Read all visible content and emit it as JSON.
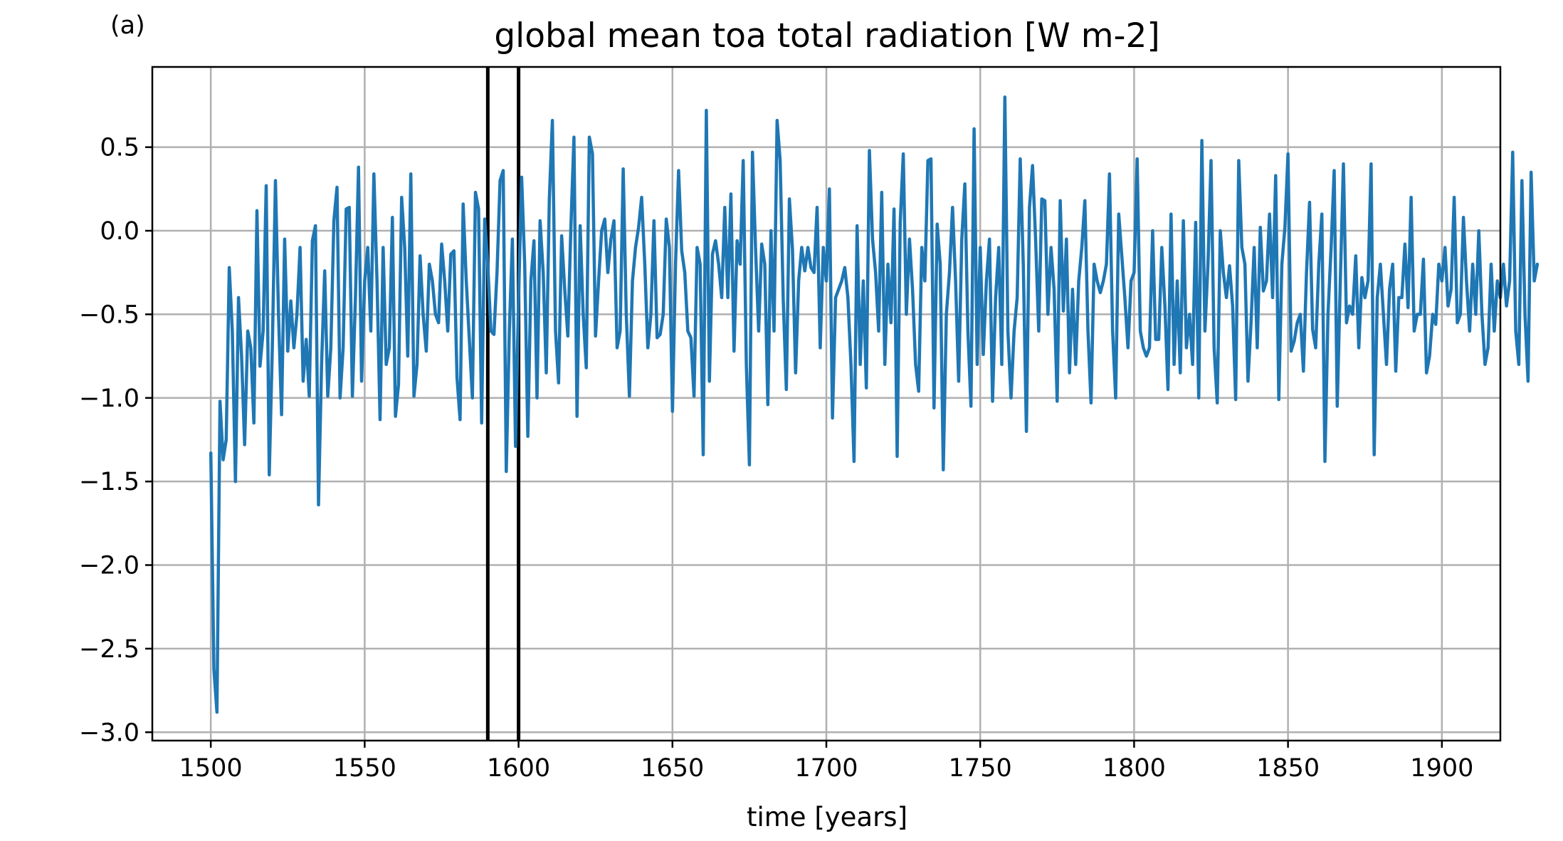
{
  "panel_label": "(a)",
  "chart_data": {
    "type": "line",
    "title": "global mean toa total radiation [W m-2]",
    "xlabel": "time [years]",
    "ylabel": "",
    "xlim": [
      1481,
      1919
    ],
    "ylim": [
      -3.05,
      0.98
    ],
    "grid": true,
    "x_ticks": [
      1500,
      1550,
      1600,
      1650,
      1700,
      1750,
      1800,
      1850,
      1900
    ],
    "x_tick_labels": [
      "1500",
      "1550",
      "1600",
      "1650",
      "1700",
      "1750",
      "1800",
      "1850",
      "1900"
    ],
    "y_ticks": [
      0.5,
      0.0,
      -0.5,
      -1.0,
      -1.5,
      -2.0,
      -2.5,
      -3.0
    ],
    "y_tick_labels": [
      "0.5",
      "0.0",
      "−0.5",
      "−1.0",
      "−1.5",
      "−2.0",
      "−2.5",
      "−3.0"
    ],
    "vertical_lines": [
      1590,
      1600
    ],
    "series": [
      {
        "color": "#1f77b4",
        "x_start": 1500,
        "x_step": 1,
        "values": [
          -1.33,
          -2.62,
          -2.88,
          -1.02,
          -1.37,
          -1.25,
          -0.22,
          -0.6,
          -1.5,
          -0.4,
          -0.75,
          -1.28,
          -0.6,
          -0.7,
          -1.15,
          0.12,
          -0.81,
          -0.6,
          0.27,
          -1.46,
          -0.7,
          0.3,
          -0.5,
          -1.1,
          -0.05,
          -0.72,
          -0.42,
          -0.7,
          -0.5,
          -0.1,
          -0.9,
          -0.65,
          -0.99,
          -0.06,
          0.03,
          -1.64,
          -0.8,
          -0.24,
          -0.99,
          -0.7,
          0.06,
          0.26,
          -1.0,
          -0.7,
          0.13,
          0.14,
          -0.99,
          -0.4,
          0.38,
          -0.9,
          -0.3,
          -0.1,
          -0.6,
          0.34,
          -0.3,
          -1.13,
          -0.1,
          -0.8,
          -0.7,
          0.08,
          -1.11,
          -0.92,
          0.2,
          -0.1,
          -0.75,
          0.34,
          -0.99,
          -0.8,
          -0.15,
          -0.5,
          -0.72,
          -0.2,
          -0.3,
          -0.5,
          -0.55,
          -0.08,
          -0.3,
          -0.6,
          -0.14,
          -0.12,
          -0.88,
          -1.13,
          0.16,
          -0.3,
          -0.65,
          -1.0,
          0.23,
          0.13,
          -1.15,
          0.07,
          -0.2,
          -0.6,
          -0.62,
          -0.25,
          0.3,
          0.36,
          -1.44,
          -0.6,
          -0.05,
          -1.29,
          -0.4,
          0.32,
          -0.2,
          -1.23,
          -0.3,
          -0.06,
          -1.0,
          0.06,
          -0.25,
          -0.85,
          0.19,
          0.66,
          -0.6,
          -0.91,
          -0.03,
          -0.35,
          -0.63,
          0.02,
          0.56,
          -1.11,
          0.03,
          -0.5,
          -0.82,
          0.56,
          0.46,
          -0.63,
          -0.3,
          0.0,
          0.07,
          -0.25,
          -0.05,
          0.06,
          -0.7,
          -0.6,
          0.37,
          -0.5,
          -0.99,
          -0.3,
          -0.1,
          0.02,
          0.2,
          -0.2,
          -0.7,
          -0.5,
          0.06,
          -0.64,
          -0.62,
          -0.5,
          0.07,
          -0.1,
          -1.08,
          -0.2,
          0.36,
          -0.12,
          -0.25,
          -0.6,
          -0.64,
          -0.99,
          -0.1,
          -0.2,
          -1.34,
          0.72,
          -0.9,
          -0.14,
          -0.06,
          -0.2,
          -0.4,
          0.14,
          -0.4,
          0.22,
          -0.72,
          -0.06,
          -0.2,
          0.42,
          -0.8,
          -1.4,
          0.47,
          -0.1,
          -0.6,
          -0.08,
          -0.2,
          -1.04,
          0.0,
          -0.6,
          0.66,
          0.42,
          -0.42,
          -0.95,
          0.19,
          -0.11,
          -0.85,
          -0.3,
          -0.1,
          -0.24,
          -0.1,
          -0.22,
          -0.25,
          0.14,
          -0.7,
          -0.1,
          -0.3,
          0.25,
          -1.12,
          -0.4,
          -0.35,
          -0.3,
          -0.22,
          -0.4,
          -0.8,
          -1.38,
          0.03,
          -0.8,
          -0.3,
          -0.94,
          0.48,
          -0.05,
          -0.25,
          -0.6,
          0.23,
          -0.8,
          -0.2,
          -0.55,
          0.13,
          -1.35,
          0.05,
          0.46,
          -0.5,
          -0.05,
          -0.35,
          -0.8,
          -0.96,
          -0.1,
          -0.3,
          0.42,
          0.43,
          -1.06,
          0.04,
          -0.2,
          -1.43,
          -0.5,
          -0.25,
          0.14,
          -0.3,
          -0.9,
          -0.05,
          0.28,
          -0.6,
          -1.05,
          0.61,
          -0.8,
          -0.1,
          -0.74,
          -0.3,
          -0.05,
          -1.02,
          -0.4,
          -0.1,
          -0.8,
          0.8,
          -0.6,
          -1.0,
          -0.6,
          -0.4,
          0.43,
          -0.2,
          -1.2,
          0.14,
          0.39,
          -0.05,
          -0.6,
          0.19,
          0.18,
          -0.5,
          -0.1,
          -0.35,
          -1.02,
          0.18,
          -0.48,
          -0.05,
          -0.85,
          -0.35,
          -0.8,
          -0.3,
          -0.1,
          0.18,
          -0.6,
          -1.03,
          -0.2,
          -0.3,
          -0.37,
          -0.3,
          -0.2,
          0.34,
          -0.6,
          -1.0,
          0.1,
          -0.15,
          -0.4,
          -0.7,
          -0.3,
          -0.25,
          0.43,
          -0.6,
          -0.7,
          -0.75,
          -0.7,
          0.0,
          -0.65,
          -0.65,
          -0.1,
          -0.45,
          -0.95,
          0.1,
          -0.8,
          -0.3,
          -0.85,
          0.06,
          -0.7,
          -0.5,
          -0.8,
          0.05,
          -1.0,
          0.54,
          -0.6,
          -0.2,
          0.42,
          -0.7,
          -1.03,
          0.0,
          -0.25,
          -0.4,
          -0.21,
          -0.45,
          -1.01,
          0.42,
          -0.1,
          -0.2,
          -0.9,
          -0.55,
          -0.1,
          -0.7,
          0.02,
          -0.36,
          -0.3,
          0.1,
          -0.4,
          0.33,
          -1.01,
          -0.2,
          0.02,
          0.46,
          -0.72,
          -0.66,
          -0.55,
          -0.5,
          -0.84,
          -0.25,
          0.17,
          -0.59,
          -0.7,
          -0.2,
          0.1,
          -1.38,
          -0.5,
          -0.1,
          0.36,
          -1.05,
          -0.3,
          0.4,
          -0.55,
          -0.45,
          -0.5,
          -0.15,
          -0.7,
          -0.28,
          -0.4,
          -0.3,
          0.4,
          -1.34,
          -0.4,
          -0.2,
          -0.5,
          -0.8,
          -0.35,
          -0.2,
          -0.84,
          -0.4,
          -0.4,
          -0.08,
          -0.46,
          0.2,
          -0.6,
          -0.5,
          -0.5,
          -0.17,
          -0.85,
          -0.75,
          -0.5,
          -0.56,
          -0.2,
          -0.3,
          -0.1,
          -0.45,
          -0.35,
          0.2,
          -0.55,
          -0.5,
          0.08,
          -0.3,
          -0.6,
          -0.2,
          -0.5,
          0.0,
          -0.5,
          -0.8,
          -0.7,
          -0.2,
          -0.6,
          -0.3,
          -0.4,
          -0.2,
          -0.45,
          -0.3,
          0.47,
          -0.6,
          -0.8,
          0.3,
          -0.5,
          -0.9,
          0.35,
          -0.3,
          -0.2
        ]
      }
    ]
  }
}
